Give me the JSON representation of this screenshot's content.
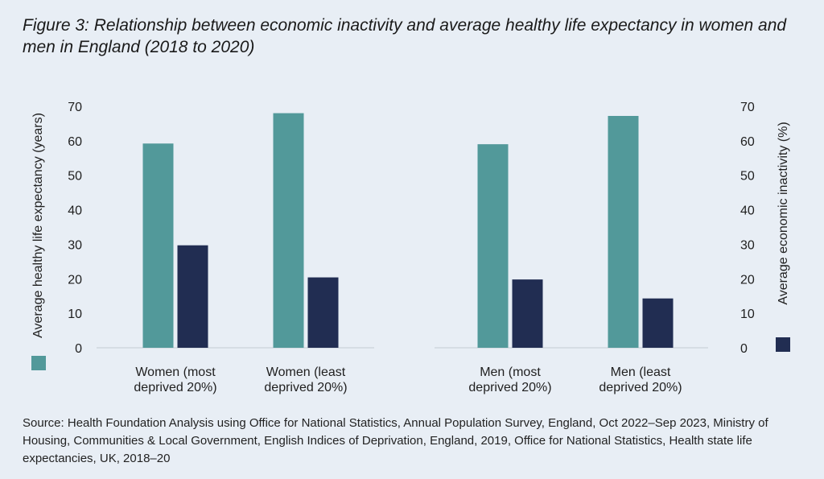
{
  "title": {
    "prefix": "Figure 3",
    "rest": ": Relationship between economic inactivity and average healthy life expectancy in women and men in England (2018 to 2020)"
  },
  "source": "Source: Health Foundation Analysis using Office for National Statistics, Annual Population Survey, England, Oct 2022–Sep 2023, Ministry of Housing, Communities & Local Government, English Indices of Deprivation, England, 2019, Office for National Statistics, Health state life expectancies, UK, 2018–20",
  "colors": {
    "life_expectancy": "#52999a",
    "economic_inactivity": "#212d52",
    "grid": "#c5ccd4"
  },
  "chart_data": {
    "type": "bar",
    "title": "Relationship between economic inactivity and average healthy life expectancy in women and men in England (2018 to 2020)",
    "categories": [
      [
        "Women (most",
        "deprived 20%)"
      ],
      [
        "Women (least",
        "deprived 20%)"
      ],
      [
        "Men (most",
        "deprived 20%)"
      ],
      [
        "Men (least",
        "deprived 20%)"
      ]
    ],
    "ylabel_left": "Average healthy life expectancy (years)",
    "ylabel_right": "Average economic inactivity (%)",
    "ylim": [
      0,
      70
    ],
    "yticks": [
      0,
      10,
      20,
      30,
      40,
      50,
      60,
      70
    ],
    "series": [
      {
        "name": "Average healthy life expectancy (years)",
        "axis": "left",
        "values": [
          59.2,
          68.0,
          59.0,
          67.2
        ]
      },
      {
        "name": "Average economic inactivity (%)",
        "axis": "right",
        "values": [
          29.7,
          20.4,
          19.8,
          14.3
        ]
      }
    ]
  }
}
